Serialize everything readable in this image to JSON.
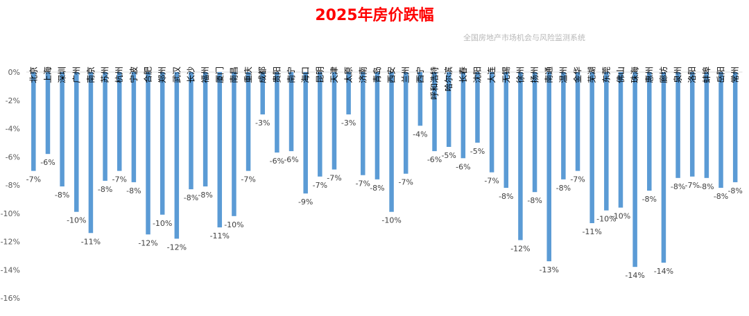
{
  "title_color": "#ff0000",
  "bar_color": "#5b9bd5",
  "watermark": "全国房地产市场机会与风险监测系统",
  "chart_data": {
    "type": "bar",
    "title": "2025年房价跌幅",
    "categories": [
      "北京",
      "上海",
      "深圳",
      "广州",
      "南京",
      "苏州",
      "杭州",
      "宁波",
      "合肥",
      "郑州",
      "武汉",
      "长沙",
      "福州",
      "厦门",
      "南昌",
      "重庆",
      "成都",
      "贵阳",
      "南宁",
      "海口",
      "昆明",
      "天津",
      "太原",
      "济南",
      "青岛",
      "西安",
      "兰州",
      "西宁",
      "呼和浩特",
      "哈尔滨",
      "长春",
      "沈阳",
      "大连",
      "无锡",
      "徐州",
      "扬州",
      "南通",
      "温州",
      "金华",
      "芜湖",
      "东莞",
      "佛山",
      "珠海",
      "惠州",
      "廊坊",
      "泉州",
      "洛阳",
      "蚌埠",
      "岳阳",
      "常州"
    ],
    "values": [
      -7.0,
      -5.8,
      -8.1,
      -9.9,
      -11.4,
      -7.7,
      -7.0,
      -7.8,
      -11.5,
      -10.1,
      -11.8,
      -8.3,
      -8.1,
      -11.0,
      -10.2,
      -7.0,
      -3.0,
      -5.7,
      -5.6,
      -8.6,
      -7.4,
      -6.9,
      -3.0,
      -7.3,
      -7.6,
      -9.9,
      -7.2,
      -3.8,
      -5.6,
      -5.3,
      -6.1,
      -5.0,
      -7.1,
      -8.2,
      -11.9,
      -8.5,
      -13.4,
      -7.6,
      -7.0,
      -10.7,
      -9.8,
      -9.6,
      -13.8,
      -8.4,
      -13.5,
      -7.5,
      -7.4,
      -7.5,
      -8.2,
      -7.8
    ],
    "labels": [
      "-7%",
      "-6%",
      "-8%",
      "-10%",
      "-11%",
      "-8%",
      "-7%",
      "-8%",
      "-12%",
      "-10%",
      "-12%",
      "-8%",
      "-8%",
      "-11%",
      "-10%",
      "-7%",
      "-3%",
      "-6%",
      "-6%",
      "-9%",
      "-7%",
      "-7%",
      "-3%",
      "-7%",
      "-8%",
      "-10%",
      "-7%",
      "-4%",
      "-6%",
      "-5%",
      "-6%",
      "-5%",
      "-7%",
      "-8%",
      "-12%",
      "-8%",
      "-13%",
      "-8%",
      "-7%",
      "-11%",
      "-10%",
      "-10%",
      "-14%",
      "-8%",
      "-14%",
      "-8%",
      "-7%",
      "-8%",
      "-8%",
      "-8%"
    ],
    "ylim": [
      -16,
      0
    ],
    "yticks": [
      "0%",
      "-2%",
      "-4%",
      "-6%",
      "-8%",
      "-10%",
      "-12%",
      "-14%",
      "-16%"
    ],
    "grid": false,
    "legend": "none"
  }
}
